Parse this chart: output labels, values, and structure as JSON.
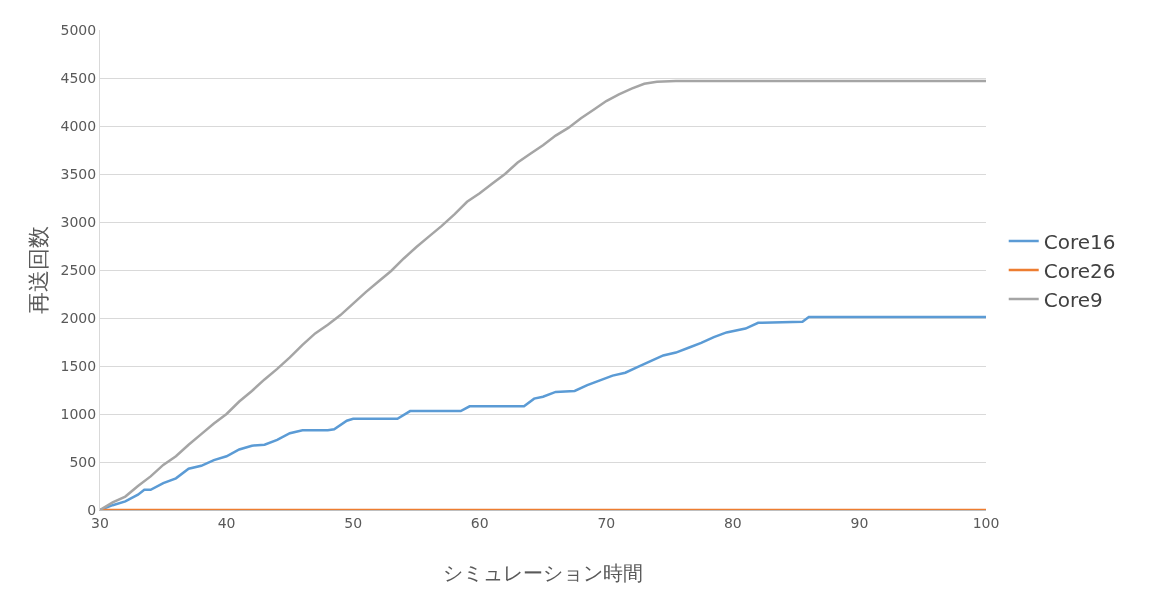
{
  "chart_data": {
    "type": "line",
    "xlabel": "シミュレーション時間",
    "ylabel": "再送回数",
    "xlim": [
      30,
      100
    ],
    "xticks": [
      30,
      40,
      50,
      60,
      70,
      80,
      90,
      100
    ],
    "ylim": [
      0,
      5000
    ],
    "yticks": [
      0,
      500,
      1000,
      1500,
      2000,
      2500,
      3000,
      3500,
      4000,
      4500,
      5000
    ],
    "grid": "y",
    "legend": "right",
    "marker": "none",
    "line_style": "solid",
    "series": [
      {
        "name": "Core16",
        "color": "#5b9bd5",
        "x": [
          30,
          31,
          32,
          33,
          33.5,
          34,
          35,
          36,
          37,
          38,
          39,
          40,
          41,
          42,
          43,
          44,
          45,
          46,
          48,
          48.5,
          49.5,
          50,
          53.5,
          54.5,
          58.5,
          59.2,
          63.5,
          64.3,
          65,
          66,
          67.5,
          68.5,
          69.5,
          70.5,
          71.5,
          72.5,
          73.5,
          74.5,
          75.5,
          76.5,
          77.5,
          78.5,
          79.5,
          81,
          82,
          85.5,
          86,
          100
        ],
        "values": [
          0,
          50,
          90,
          160,
          210,
          210,
          280,
          330,
          430,
          460,
          520,
          560,
          630,
          670,
          680,
          730,
          800,
          830,
          830,
          840,
          930,
          950,
          950,
          1030,
          1030,
          1080,
          1080,
          1160,
          1180,
          1230,
          1240,
          1300,
          1350,
          1400,
          1430,
          1490,
          1550,
          1610,
          1640,
          1690,
          1740,
          1800,
          1850,
          1890,
          1950,
          1960,
          2010,
          2010
        ]
      },
      {
        "name": "Core26",
        "color": "#ed7d31",
        "x": [
          30,
          100
        ],
        "values": [
          0,
          0
        ]
      },
      {
        "name": "Core9",
        "color": "#a5a5a5",
        "x": [
          30,
          31,
          32,
          33,
          34,
          35,
          36,
          37,
          38,
          39,
          40,
          41,
          42,
          43,
          44,
          45,
          46,
          47,
          48,
          49,
          50,
          51,
          52,
          53,
          54,
          55,
          56,
          57,
          58,
          59,
          60,
          61,
          62,
          63,
          64,
          65,
          66,
          67,
          68,
          69,
          70,
          71,
          72,
          73,
          74,
          75.5,
          100
        ],
        "values": [
          0,
          80,
          140,
          250,
          350,
          470,
          560,
          680,
          790,
          900,
          1000,
          1130,
          1240,
          1360,
          1470,
          1590,
          1720,
          1840,
          1930,
          2030,
          2150,
          2270,
          2380,
          2490,
          2620,
          2740,
          2850,
          2960,
          3080,
          3210,
          3300,
          3400,
          3500,
          3620,
          3710,
          3800,
          3900,
          3980,
          4080,
          4170,
          4260,
          4330,
          4390,
          4440,
          4460,
          4470,
          4470
        ]
      }
    ]
  }
}
